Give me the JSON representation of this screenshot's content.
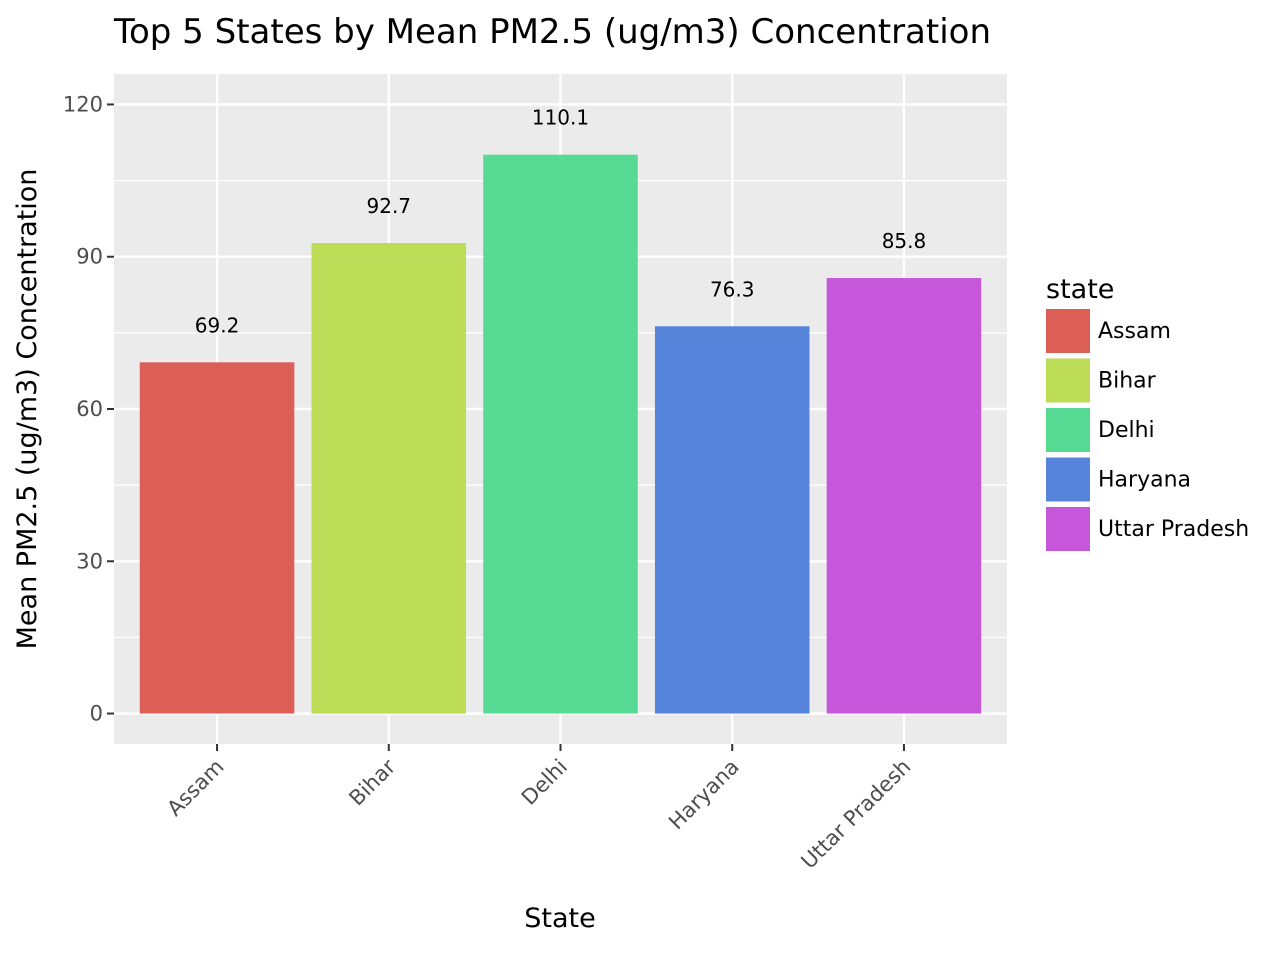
{
  "chart_data": {
    "type": "bar",
    "title": "Top 5 States by Mean PM2.5 (ug/m3) Concentration",
    "xlabel": "State",
    "ylabel": "Mean PM2.5 (ug/m3) Concentration",
    "categories": [
      "Assam",
      "Bihar",
      "Delhi",
      "Haryana",
      "Uttar Pradesh"
    ],
    "values": [
      69.2,
      92.7,
      110.1,
      76.3,
      85.8
    ],
    "data_labels": [
      "69.2",
      "92.7",
      "110.1",
      "76.3",
      "85.8"
    ],
    "colors": [
      "#db5f57",
      "#bcdb57",
      "#57db94",
      "#5784db",
      "#c657db"
    ],
    "ylim": [
      -6,
      126
    ],
    "yticks": [
      0,
      30,
      60,
      90,
      120
    ],
    "ytick_labels": [
      "0",
      "30",
      "60",
      "90",
      "120"
    ],
    "grid": true,
    "legend": {
      "title": "state",
      "placement": "right",
      "entries": [
        "Assam",
        "Bihar",
        "Delhi",
        "Haryana",
        "Uttar Pradesh"
      ]
    }
  }
}
